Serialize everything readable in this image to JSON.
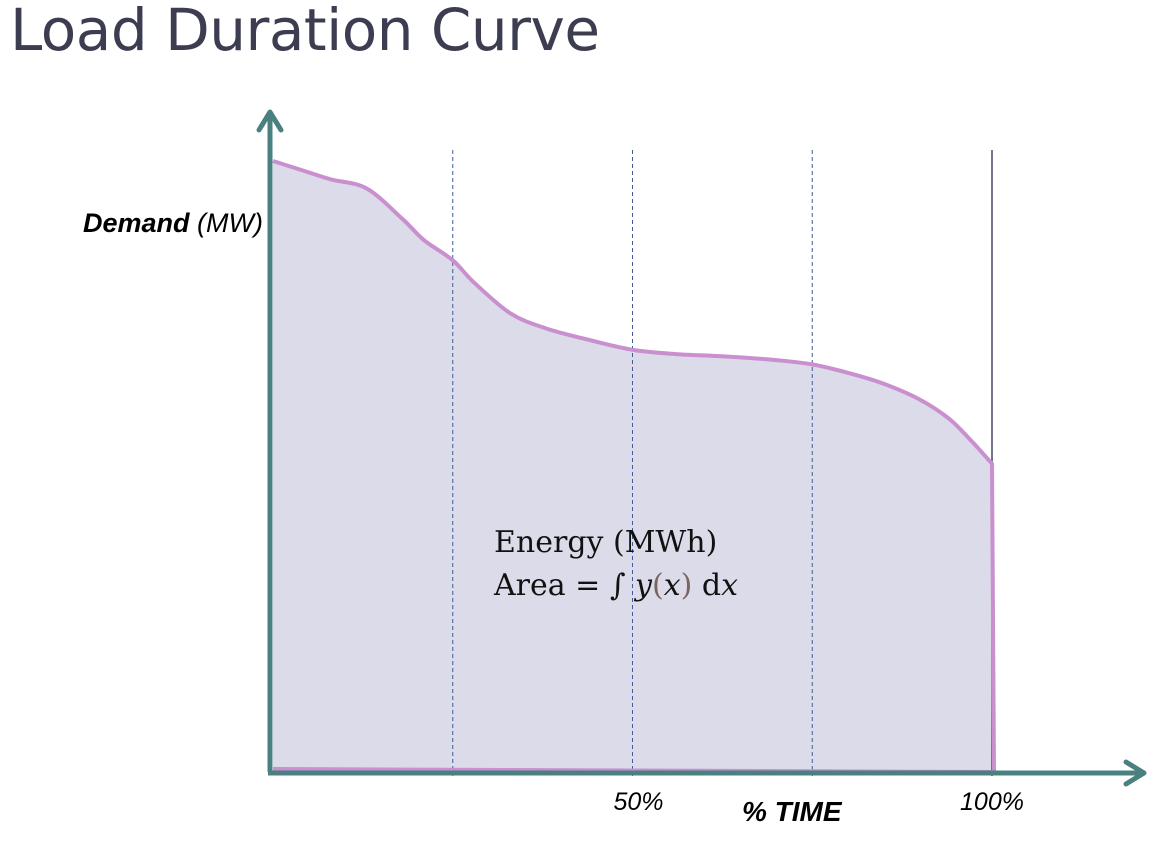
{
  "title": "Load Duration Curve",
  "chart_data": {
    "type": "area",
    "title": "Load Duration Curve",
    "ylabel_bold": "Demand",
    "ylabel_unit": " (MW)",
    "xlabel": "% TIME",
    "xlim": [
      0,
      100
    ],
    "ylim": [
      0,
      100
    ],
    "x_ticks": [
      {
        "value": 50,
        "label": "50%"
      },
      {
        "value": 100,
        "label": "100%"
      }
    ],
    "gridlines_x": [
      25,
      50,
      75
    ],
    "series": [
      {
        "name": "Load duration curve",
        "x": [
          0,
          4,
          8,
          13,
          18,
          21,
          25,
          28,
          33,
          38,
          44,
          50,
          56,
          63,
          70,
          75,
          80,
          85,
          90,
          94,
          97,
          100
        ],
        "y": [
          100,
          98.5,
          97,
          95.5,
          90.5,
          87,
          83.7,
          80,
          75,
          72.5,
          70.6,
          69,
          68.3,
          67.9,
          67.3,
          66.6,
          65.2,
          63.4,
          60.8,
          57.7,
          54.2,
          50.3
        ]
      }
    ],
    "annotation": {
      "line1": "Energy (MWh)",
      "area_label": "Area = ",
      "integral": "∫",
      "y": "y",
      "open_paren": "(",
      "x": "x",
      "close_paren": ")",
      "d": " d",
      "dx_var": "x"
    },
    "colors": {
      "axis": "#4a8080",
      "curve": "#c98fcf",
      "fill": "#dcdbe9",
      "grid": "#3e5c98",
      "end_line": "#555070"
    }
  }
}
